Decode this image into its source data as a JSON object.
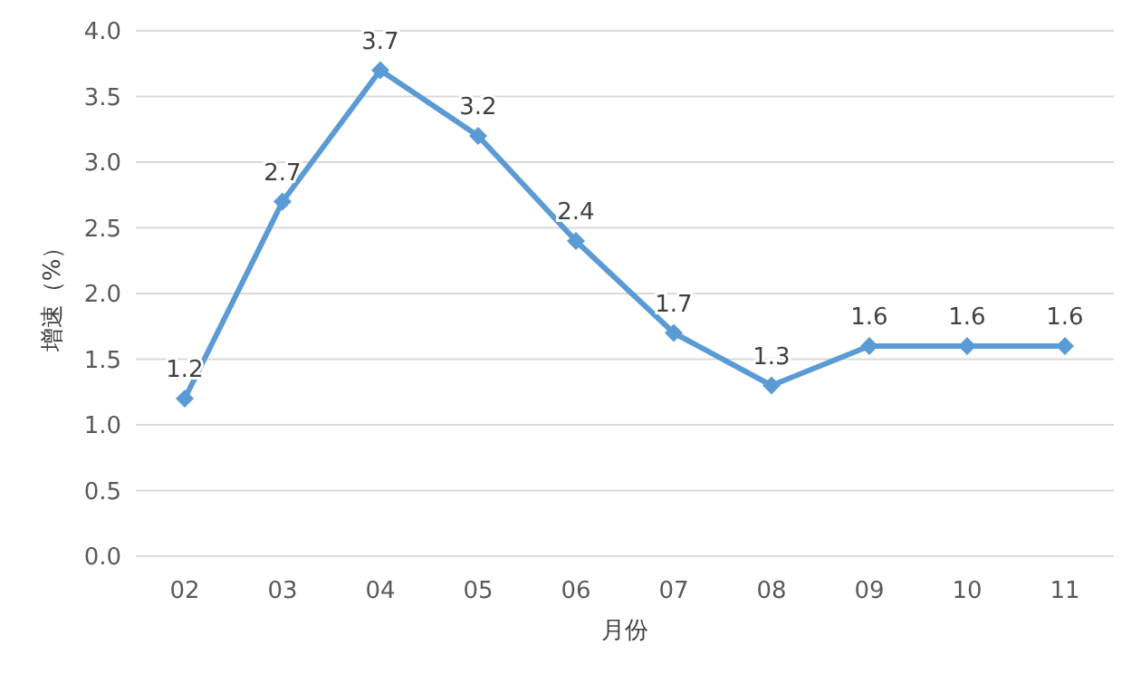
{
  "chart_data": {
    "type": "line",
    "xlabel": "月份",
    "ylabel": "增速（%）",
    "categories": [
      "02",
      "03",
      "04",
      "05",
      "06",
      "07",
      "08",
      "09",
      "10",
      "11"
    ],
    "series": [
      {
        "color": "#5b9bd5",
        "values": [
          1.2,
          2.7,
          3.7,
          3.2,
          2.4,
          1.7,
          1.3,
          1.6,
          1.6,
          1.6
        ]
      }
    ],
    "ylim": [
      0,
      4
    ],
    "yticks": [
      {
        "value": 0,
        "label": "0.0"
      },
      0.5,
      {
        "value": 1,
        "label": "1.0"
      },
      1.5,
      {
        "value": 2,
        "label": "2.0"
      },
      2.5,
      {
        "value": 3,
        "label": "3.0"
      },
      3.5,
      {
        "value": 4,
        "label": "4.0"
      }
    ],
    "grid": "y",
    "marker": "diamond",
    "line_style": "solid",
    "data_labels": true
  }
}
